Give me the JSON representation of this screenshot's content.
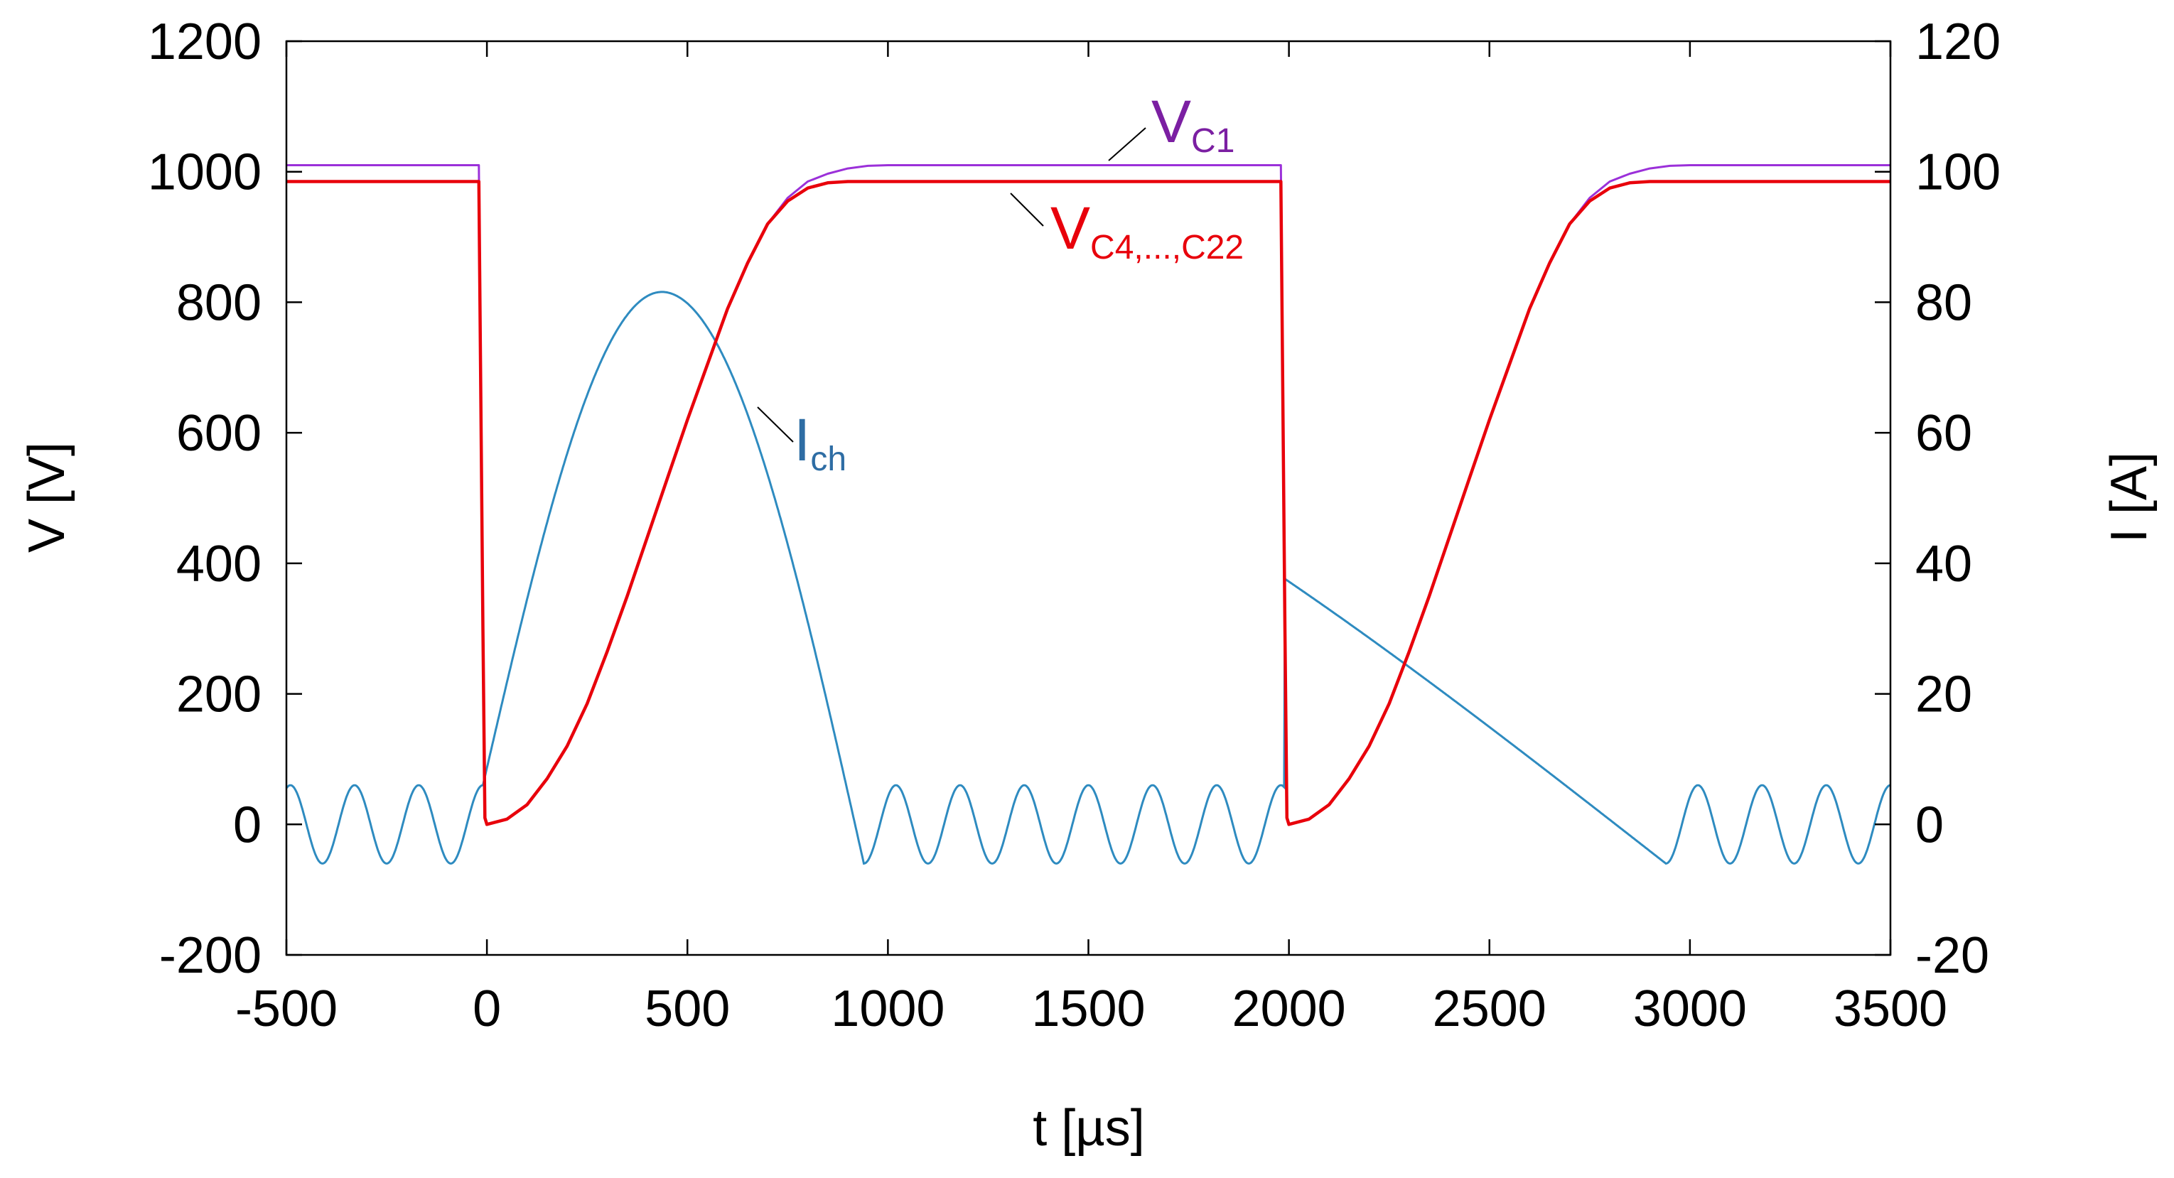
{
  "chart_data": {
    "type": "line",
    "xlabel": "t [µs]",
    "ylabel_left": "V [V]",
    "ylabel_right": "I [A]",
    "xlim": [
      -500,
      3500
    ],
    "ylim_left": [
      -200,
      1200
    ],
    "ylim_right": [
      -20,
      120
    ],
    "grid": false,
    "x_ticks": [
      -500,
      0,
      500,
      1000,
      1500,
      2000,
      2500,
      3000,
      3500
    ],
    "y_left_ticks": [
      -200,
      0,
      200,
      400,
      600,
      800,
      1000,
      1200
    ],
    "y_right_ticks": [
      -20,
      0,
      20,
      40,
      60,
      80,
      100,
      120
    ],
    "colors": {
      "vc1": "#9b30d9",
      "vc4": "#e8000b",
      "ich": "#2e8bc0",
      "vc1_label": "#7b1fa2",
      "vc4_label": "#e8000b",
      "ich_label": "#2e6da4"
    },
    "series": [
      {
        "name": "V_C1",
        "axis": "left",
        "label_main": "V",
        "label_sub": "C1",
        "points": [
          [
            -500,
            1010
          ],
          [
            -20,
            1010
          ],
          [
            -10,
            300
          ],
          [
            -5,
            10
          ],
          [
            0,
            0
          ],
          [
            50,
            8
          ],
          [
            100,
            30
          ],
          [
            150,
            70
          ],
          [
            200,
            120
          ],
          [
            250,
            185
          ],
          [
            300,
            265
          ],
          [
            350,
            350
          ],
          [
            400,
            440
          ],
          [
            450,
            530
          ],
          [
            500,
            620
          ],
          [
            550,
            705
          ],
          [
            600,
            790
          ],
          [
            650,
            860
          ],
          [
            700,
            920
          ],
          [
            750,
            960
          ],
          [
            800,
            985
          ],
          [
            850,
            997
          ],
          [
            900,
            1005
          ],
          [
            950,
            1009
          ],
          [
            1000,
            1010
          ],
          [
            1980,
            1010
          ],
          [
            1990,
            300
          ],
          [
            1995,
            10
          ],
          [
            2000,
            0
          ],
          [
            2050,
            8
          ],
          [
            2100,
            30
          ],
          [
            2150,
            70
          ],
          [
            2200,
            120
          ],
          [
            2250,
            185
          ],
          [
            2300,
            265
          ],
          [
            2350,
            350
          ],
          [
            2400,
            440
          ],
          [
            2450,
            530
          ],
          [
            2500,
            620
          ],
          [
            2550,
            705
          ],
          [
            2600,
            790
          ],
          [
            2650,
            860
          ],
          [
            2700,
            920
          ],
          [
            2750,
            960
          ],
          [
            2800,
            985
          ],
          [
            2850,
            997
          ],
          [
            2900,
            1005
          ],
          [
            2950,
            1009
          ],
          [
            3000,
            1010
          ],
          [
            3500,
            1010
          ]
        ]
      },
      {
        "name": "V_C4,...,C22",
        "axis": "left",
        "label_main": "V",
        "label_sub": "C4,...,C22",
        "points": [
          [
            -500,
            985
          ],
          [
            -20,
            985
          ],
          [
            -10,
            300
          ],
          [
            -5,
            10
          ],
          [
            0,
            0
          ],
          [
            50,
            8
          ],
          [
            100,
            30
          ],
          [
            150,
            70
          ],
          [
            200,
            120
          ],
          [
            250,
            185
          ],
          [
            300,
            265
          ],
          [
            350,
            350
          ],
          [
            400,
            440
          ],
          [
            450,
            530
          ],
          [
            500,
            620
          ],
          [
            550,
            705
          ],
          [
            600,
            790
          ],
          [
            650,
            860
          ],
          [
            700,
            920
          ],
          [
            750,
            955
          ],
          [
            800,
            975
          ],
          [
            850,
            983
          ],
          [
            900,
            985
          ],
          [
            1980,
            985
          ],
          [
            1990,
            300
          ],
          [
            1995,
            10
          ],
          [
            2000,
            0
          ],
          [
            2050,
            8
          ],
          [
            2100,
            30
          ],
          [
            2150,
            70
          ],
          [
            2200,
            120
          ],
          [
            2250,
            185
          ],
          [
            2300,
            265
          ],
          [
            2350,
            350
          ],
          [
            2400,
            440
          ],
          [
            2450,
            530
          ],
          [
            2500,
            620
          ],
          [
            2550,
            705
          ],
          [
            2600,
            790
          ],
          [
            2650,
            860
          ],
          [
            2700,
            920
          ],
          [
            2750,
            955
          ],
          [
            2800,
            975
          ],
          [
            2850,
            983
          ],
          [
            2900,
            985
          ],
          [
            3500,
            985
          ]
        ]
      },
      {
        "name": "I_ch",
        "axis": "right",
        "label_main": "I",
        "label_sub": "ch",
        "pulse_peak": 81.5,
        "pulse_peak_t": 450,
        "pulse_starts": [
          -10,
          1990
        ],
        "pulse_ends": [
          940,
          2940
        ],
        "oscillation_amplitude": 6,
        "oscillation_period": 160
      }
    ]
  }
}
